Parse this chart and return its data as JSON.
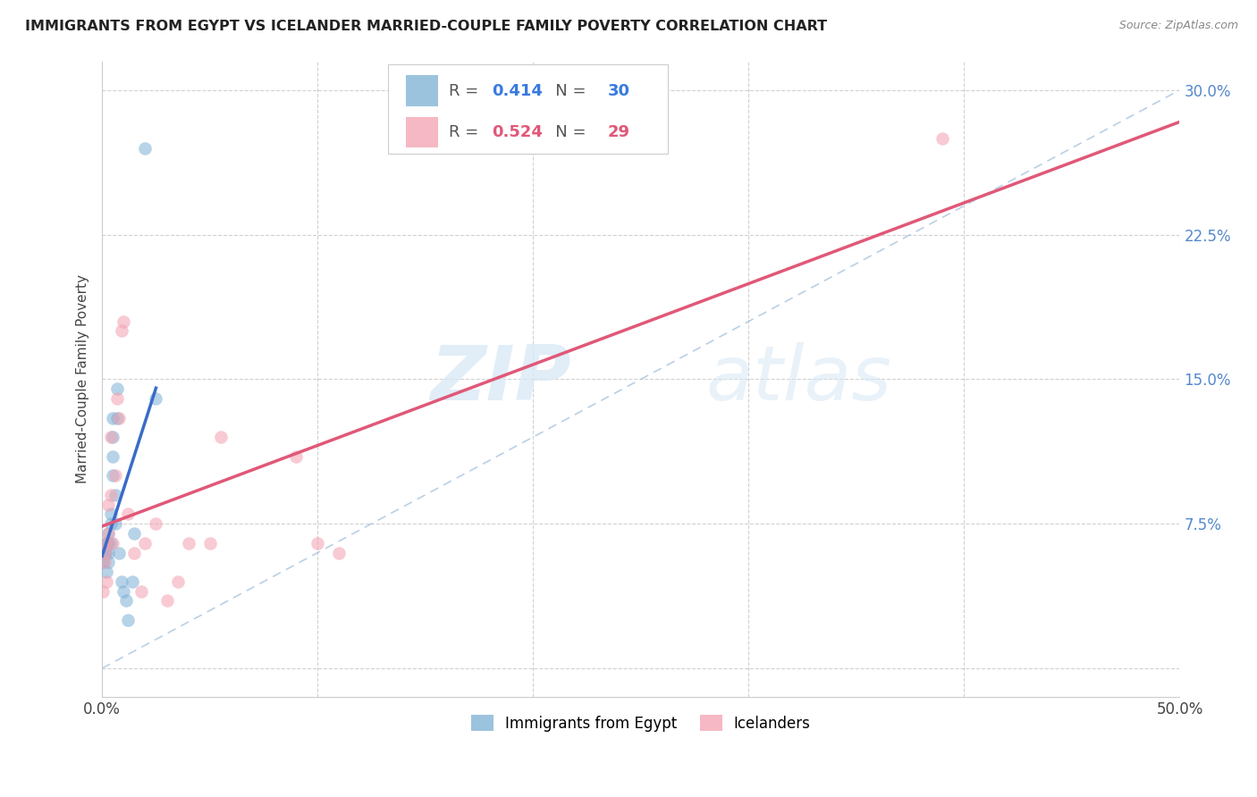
{
  "title": "IMMIGRANTS FROM EGYPT VS ICELANDER MARRIED-COUPLE FAMILY POVERTY CORRELATION CHART",
  "source": "Source: ZipAtlas.com",
  "ylabel": "Married-Couple Family Poverty",
  "xlim": [
    0.0,
    0.5
  ],
  "ylim": [
    -0.015,
    0.315
  ],
  "xticks": [
    0.0,
    0.1,
    0.2,
    0.3,
    0.4,
    0.5
  ],
  "xticklabels": [
    "0.0%",
    "",
    "",
    "",
    "",
    "50.0%"
  ],
  "yticks": [
    0.0,
    0.075,
    0.15,
    0.225,
    0.3
  ],
  "yticklabels": [
    "",
    "7.5%",
    "15.0%",
    "22.5%",
    "30.0%"
  ],
  "color_blue": "#7BAFD4",
  "color_pink": "#F4A0B0",
  "color_blue_line": "#3A6BC8",
  "color_pink_line": "#E05878",
  "color_diag": "#A8C4E0",
  "watermark_zip": "ZIP",
  "watermark_atlas": "atlas",
  "egypt_x": [
    0.0005,
    0.001,
    0.0015,
    0.002,
    0.002,
    0.002,
    0.003,
    0.003,
    0.003,
    0.003,
    0.004,
    0.004,
    0.004,
    0.005,
    0.005,
    0.005,
    0.005,
    0.006,
    0.006,
    0.007,
    0.007,
    0.008,
    0.009,
    0.01,
    0.011,
    0.012,
    0.014,
    0.015,
    0.02,
    0.025
  ],
  "egypt_y": [
    0.055,
    0.06,
    0.06,
    0.05,
    0.065,
    0.065,
    0.055,
    0.06,
    0.065,
    0.07,
    0.08,
    0.065,
    0.075,
    0.1,
    0.11,
    0.12,
    0.13,
    0.09,
    0.075,
    0.13,
    0.145,
    0.06,
    0.045,
    0.04,
    0.035,
    0.025,
    0.045,
    0.07,
    0.27,
    0.14
  ],
  "iceland_x": [
    0.0005,
    0.001,
    0.0015,
    0.002,
    0.002,
    0.003,
    0.003,
    0.004,
    0.004,
    0.005,
    0.006,
    0.007,
    0.008,
    0.009,
    0.01,
    0.012,
    0.015,
    0.018,
    0.02,
    0.025,
    0.03,
    0.035,
    0.04,
    0.05,
    0.055,
    0.09,
    0.1,
    0.11,
    0.39
  ],
  "iceland_y": [
    0.04,
    0.055,
    0.06,
    0.045,
    0.065,
    0.07,
    0.085,
    0.09,
    0.12,
    0.065,
    0.1,
    0.14,
    0.13,
    0.175,
    0.18,
    0.08,
    0.06,
    0.04,
    0.065,
    0.075,
    0.035,
    0.045,
    0.065,
    0.065,
    0.12,
    0.11,
    0.065,
    0.06,
    0.275
  ],
  "marker_size": 110,
  "alpha": 0.55,
  "egypt_reg_xrange": [
    0.0,
    0.025
  ],
  "iceland_reg_xrange": [
    0.0,
    0.5
  ]
}
